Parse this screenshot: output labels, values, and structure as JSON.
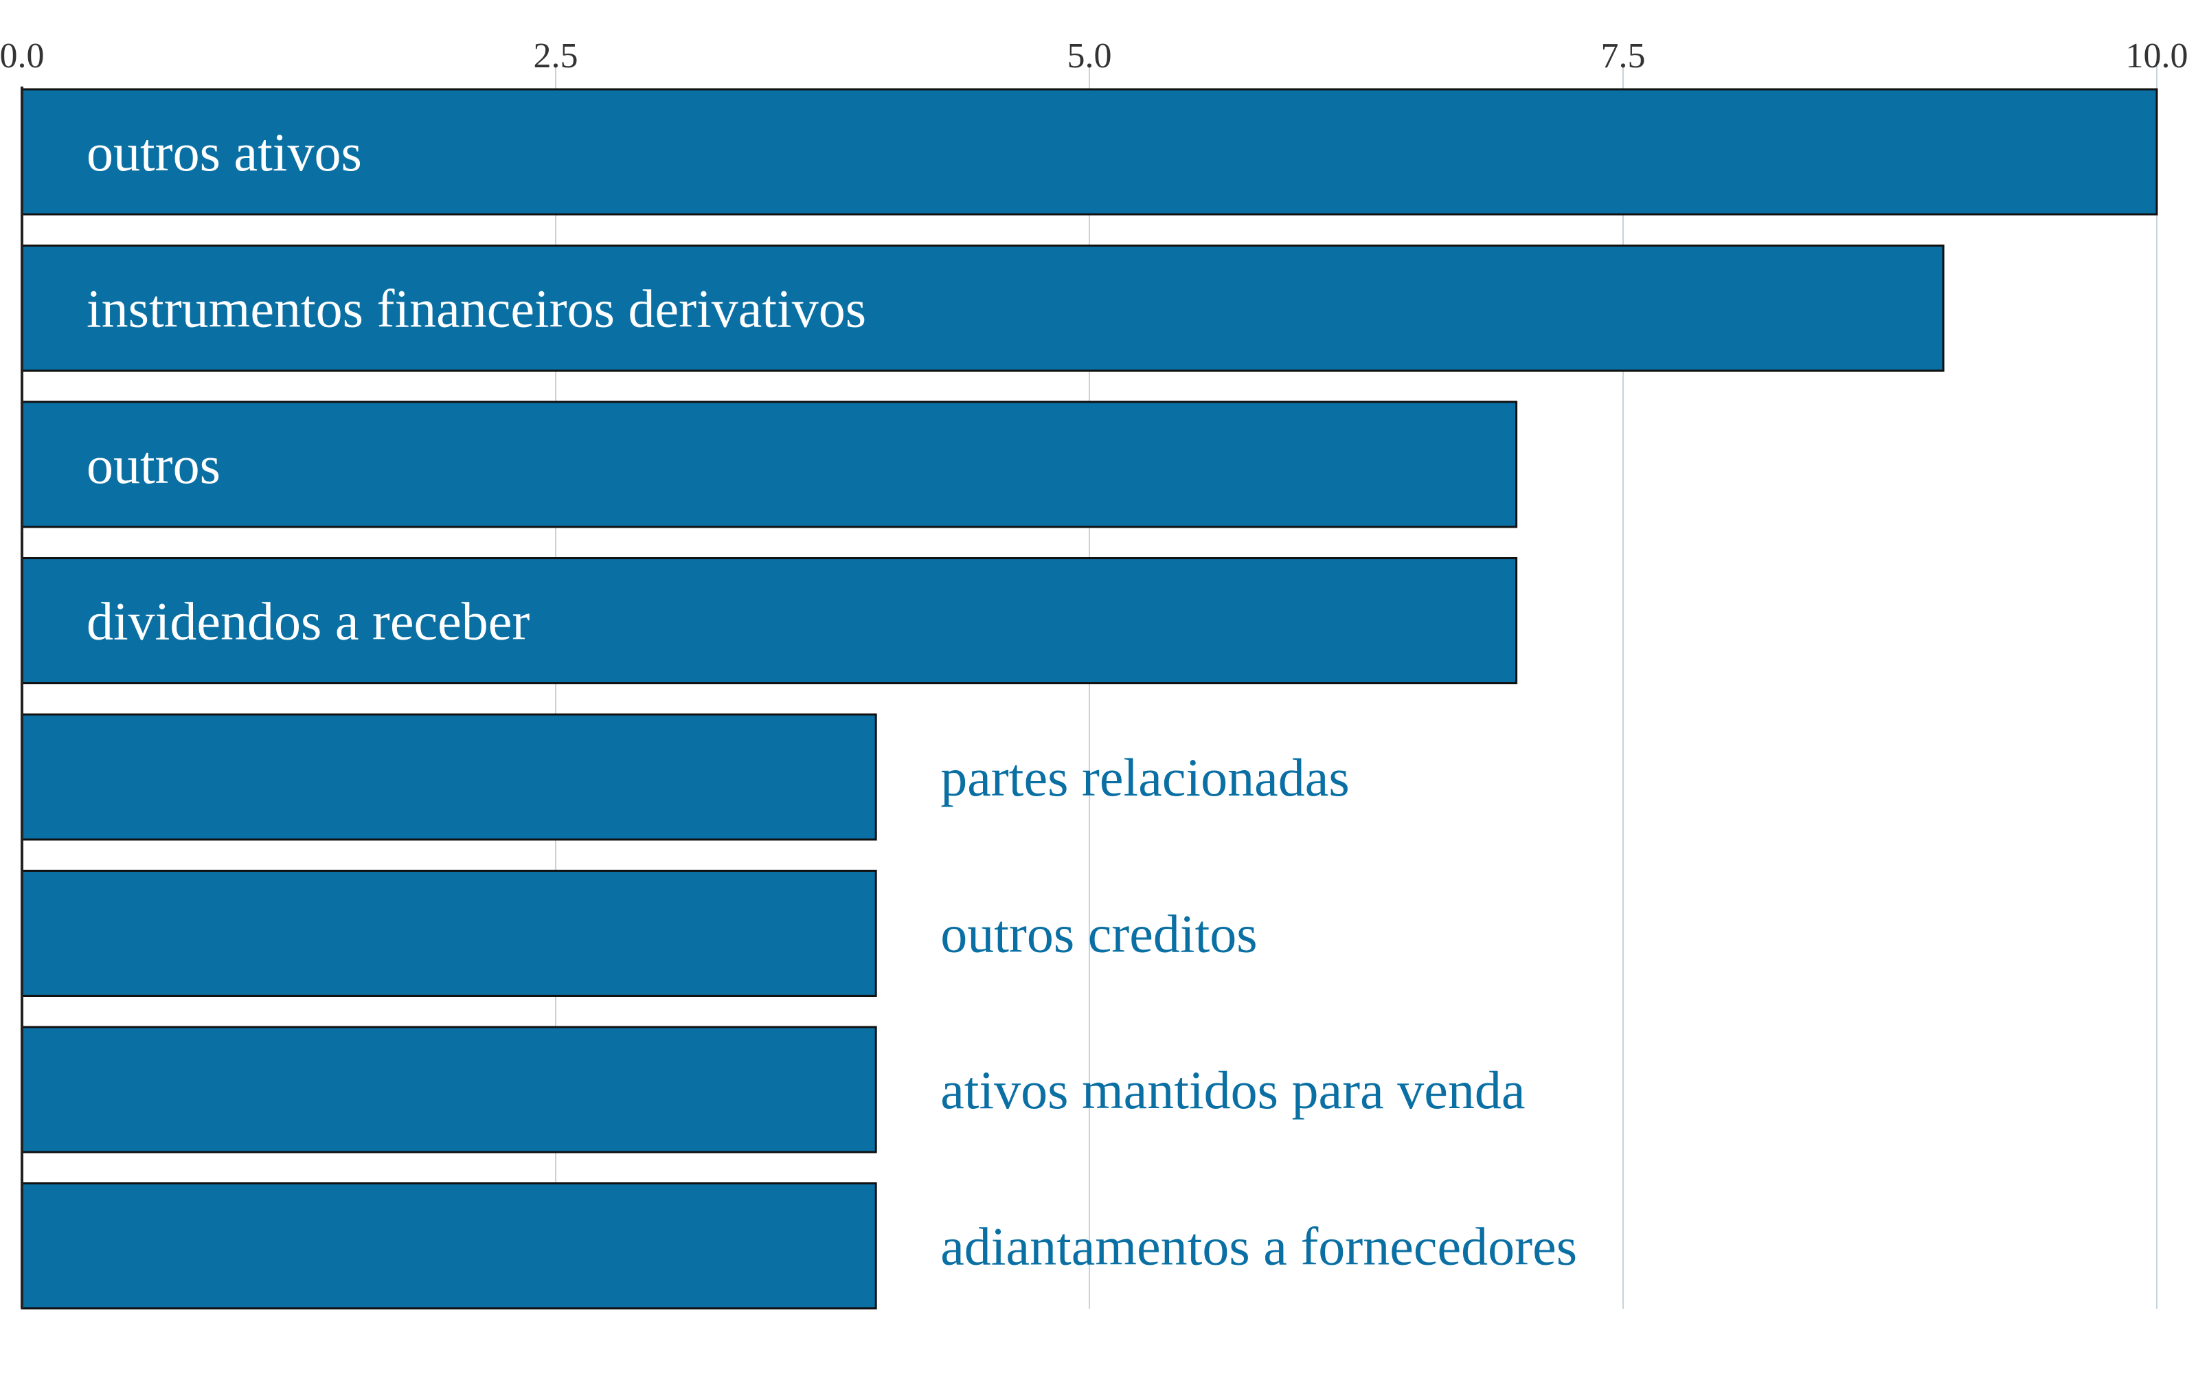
{
  "chart_data": {
    "type": "bar",
    "orientation": "horizontal",
    "categories": [
      "outros ativos",
      "instrumentos financeiros derivativos",
      "outros",
      "dividendos a receber",
      "partes relacionadas",
      "outros creditos",
      "ativos mantidos para venda",
      "adiantamentos a fornecedores"
    ],
    "values": [
      10,
      9,
      7,
      7,
      4,
      4,
      4,
      4
    ],
    "x_ticks": [
      "0.0",
      "2.5",
      "5.0",
      "7.5",
      "10.0"
    ],
    "xlim": [
      0,
      10
    ],
    "title": "",
    "xlabel": "",
    "ylabel": "",
    "grid": "vertical",
    "label_position": "inside bar when it fits, otherwise right of bar"
  },
  "colors": {
    "bar": "#0a6fa3",
    "bar_outline": "#111111",
    "label_inside": "#ffffff",
    "label_outside": "#0a6fa3",
    "grid": "#c5d3dc",
    "axis": "#222222"
  }
}
